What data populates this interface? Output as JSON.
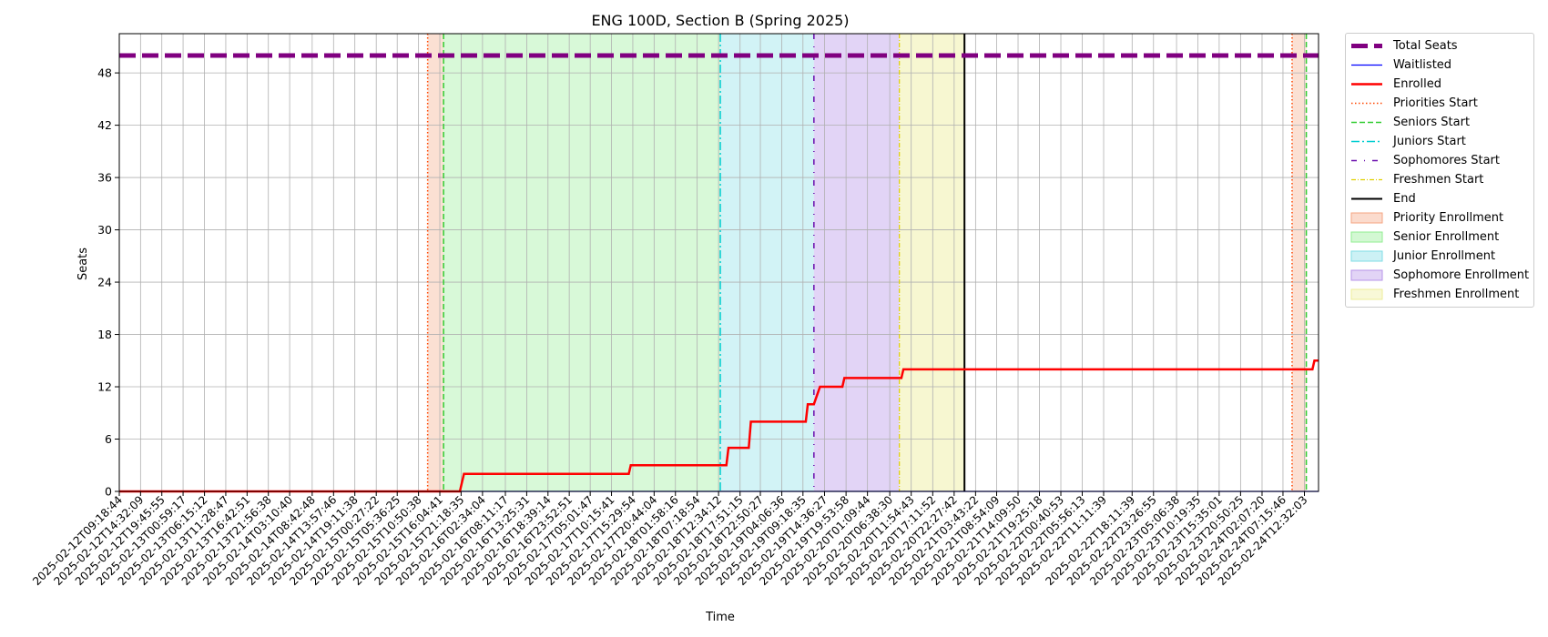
{
  "chart_data": {
    "type": "line",
    "title": "ENG 100D, Section B (Spring 2025)",
    "xlabel": "Time",
    "ylabel": "Seats",
    "ylim": [
      0,
      52.5
    ],
    "yticks": [
      0,
      6,
      12,
      18,
      24,
      30,
      36,
      42,
      48
    ],
    "grid": true,
    "legend_placement": "outside-right",
    "xlim": [
      "2025-02-12T09:18:44",
      "2025-02-24T16:00:00"
    ],
    "x_tick_labels": [
      "2025-02-12T09:18:44",
      "2025-02-12T14:32:09",
      "2025-02-12T19:45:55",
      "2025-02-13T00:59:17",
      "2025-02-13T06:15:12",
      "2025-02-13T11:28:47",
      "2025-02-13T16:42:51",
      "2025-02-13T21:56:38",
      "2025-02-14T03:10:40",
      "2025-02-14T08:42:48",
      "2025-02-14T13:57:46",
      "2025-02-14T19:11:38",
      "2025-02-15T00:27:22",
      "2025-02-15T05:36:25",
      "2025-02-15T10:50:38",
      "2025-02-15T16:04:41",
      "2025-02-15T21:18:35",
      "2025-02-16T02:34:04",
      "2025-02-16T08:11:17",
      "2025-02-16T13:25:31",
      "2025-02-16T18:39:14",
      "2025-02-16T23:52:51",
      "2025-02-17T05:01:47",
      "2025-02-17T10:15:41",
      "2025-02-17T15:29:54",
      "2025-02-17T20:44:04",
      "2025-02-18T01:58:16",
      "2025-02-18T07:18:54",
      "2025-02-18T12:34:12",
      "2025-02-18T17:51:15",
      "2025-02-18T22:50:27",
      "2025-02-19T04:06:36",
      "2025-02-19T09:18:35",
      "2025-02-19T14:36:27",
      "2025-02-19T19:53:58",
      "2025-02-20T01:09:44",
      "2025-02-20T06:38:30",
      "2025-02-20T11:54:43",
      "2025-02-20T17:11:52",
      "2025-02-20T22:27:42",
      "2025-02-21T03:43:22",
      "2025-02-21T08:54:09",
      "2025-02-21T14:09:50",
      "2025-02-21T19:25:18",
      "2025-02-22T00:40:53",
      "2025-02-22T05:56:13",
      "2025-02-22T11:11:39",
      "2025-02-22T18:11:39",
      "2025-02-22T23:26:55",
      "2025-02-23T05:06:38",
      "2025-02-23T10:19:35",
      "2025-02-23T15:35:01",
      "2025-02-23T20:50:25",
      "2025-02-24T02:07:20",
      "2025-02-24T07:15:46",
      "2025-02-24T12:32:03"
    ],
    "series": [
      {
        "name": "Total Seats",
        "color": "#800080",
        "style": "dashed-thick",
        "x": [
          "2025-02-12T09:18:44",
          "2025-02-24T16:00:00"
        ],
        "values": [
          50,
          50
        ]
      },
      {
        "name": "Waitlisted",
        "color": "#0000ff",
        "style": "solid-thin",
        "x": [
          "2025-02-12T09:18:44",
          "2025-02-24T16:00:00"
        ],
        "values": [
          0,
          0
        ]
      },
      {
        "name": "Enrolled",
        "color": "#ff0000",
        "style": "solid-thick",
        "x": [
          "2025-02-12T09:18:44",
          "2025-02-15T21:00:00",
          "2025-02-15T22:00:00",
          "2025-02-17T14:30:00",
          "2025-02-17T15:00:00",
          "2025-02-18T14:30:00",
          "2025-02-18T15:00:00",
          "2025-02-18T20:00:00",
          "2025-02-18T20:30:00",
          "2025-02-19T10:00:00",
          "2025-02-19T10:30:00",
          "2025-02-19T12:00:00",
          "2025-02-19T13:30:00",
          "2025-02-19T19:00:00",
          "2025-02-19T19:30:00",
          "2025-02-20T09:30:00",
          "2025-02-20T10:00:00",
          "2025-02-24T14:30:00",
          "2025-02-24T15:00:00",
          "2025-02-24T16:00:00"
        ],
        "values": [
          0,
          0,
          2,
          2,
          3,
          3,
          5,
          5,
          8,
          8,
          10,
          10,
          12,
          12,
          13,
          13,
          14,
          14,
          15,
          15
        ]
      }
    ],
    "vlines": [
      {
        "name": "Priorities Start",
        "color": "#ff4500",
        "style": "dotted",
        "x": [
          "2025-02-15T13:05:00",
          "2025-02-24T09:30:00"
        ]
      },
      {
        "name": "Seniors Start",
        "color": "#32cd32",
        "style": "dashed",
        "x": [
          "2025-02-15T17:00:00",
          "2025-02-24T13:00:00"
        ]
      },
      {
        "name": "Juniors Start",
        "color": "#00ced1",
        "style": "dashdot",
        "x": [
          "2025-02-18T13:00:00"
        ]
      },
      {
        "name": "Sophomores Start",
        "color": "#6a0dad",
        "style": "loosely-dashdot",
        "x": [
          "2025-02-19T12:00:00"
        ]
      },
      {
        "name": "Freshmen Start",
        "color": "#e0d000",
        "style": "dashdot-thin",
        "x": [
          "2025-02-20T09:00:00"
        ]
      },
      {
        "name": "End",
        "color": "#000000",
        "style": "solid",
        "x": [
          "2025-02-21T01:00:00"
        ]
      }
    ],
    "spans": [
      {
        "name": "Priority Enrollment",
        "color": "#f4a582",
        "opacity": 0.35,
        "ranges": [
          [
            "2025-02-15T13:05:00",
            "2025-02-15T17:00:00"
          ],
          [
            "2025-02-24T09:30:00",
            "2025-02-24T13:00:00"
          ]
        ]
      },
      {
        "name": "Senior Enrollment",
        "color": "#90ee90",
        "opacity": 0.35,
        "ranges": [
          [
            "2025-02-15T17:00:00",
            "2025-02-18T13:00:00"
          ]
        ]
      },
      {
        "name": "Junior Enrollment",
        "color": "#7fdde5",
        "opacity": 0.35,
        "ranges": [
          [
            "2025-02-18T13:00:00",
            "2025-02-19T12:00:00"
          ]
        ]
      },
      {
        "name": "Sophomore Enrollment",
        "color": "#b794e8",
        "opacity": 0.4,
        "ranges": [
          [
            "2025-02-19T12:00:00",
            "2025-02-20T09:00:00"
          ]
        ]
      },
      {
        "name": "Freshmen Enrollment",
        "color": "#eeee9a",
        "opacity": 0.45,
        "ranges": [
          [
            "2025-02-20T09:00:00",
            "2025-02-21T01:00:00"
          ]
        ]
      }
    ],
    "legend": [
      {
        "label": "Total Seats",
        "kind": "line",
        "color": "#800080",
        "style": "dashed-thick"
      },
      {
        "label": "Waitlisted",
        "kind": "line",
        "color": "#0000ff",
        "style": "solid-thin"
      },
      {
        "label": "Enrolled",
        "kind": "line",
        "color": "#ff0000",
        "style": "solid-thick"
      },
      {
        "label": "Priorities Start",
        "kind": "line",
        "color": "#ff4500",
        "style": "dotted"
      },
      {
        "label": "Seniors Start",
        "kind": "line",
        "color": "#32cd32",
        "style": "dashed"
      },
      {
        "label": "Juniors Start",
        "kind": "line",
        "color": "#00ced1",
        "style": "dashdot"
      },
      {
        "label": "Sophomores Start",
        "kind": "line",
        "color": "#6a0dad",
        "style": "loosely-dashdot"
      },
      {
        "label": "Freshmen Start",
        "kind": "line",
        "color": "#e0d000",
        "style": "dashdot-thin"
      },
      {
        "label": "End",
        "kind": "line",
        "color": "#000000",
        "style": "solid"
      },
      {
        "label": "Priority Enrollment",
        "kind": "patch",
        "color": "#f4a582"
      },
      {
        "label": "Senior Enrollment",
        "kind": "patch",
        "color": "#90ee90"
      },
      {
        "label": "Junior Enrollment",
        "kind": "patch",
        "color": "#7fdde5"
      },
      {
        "label": "Sophomore Enrollment",
        "kind": "patch",
        "color": "#b794e8"
      },
      {
        "label": "Freshmen Enrollment",
        "kind": "patch",
        "color": "#eeee9a"
      }
    ]
  }
}
